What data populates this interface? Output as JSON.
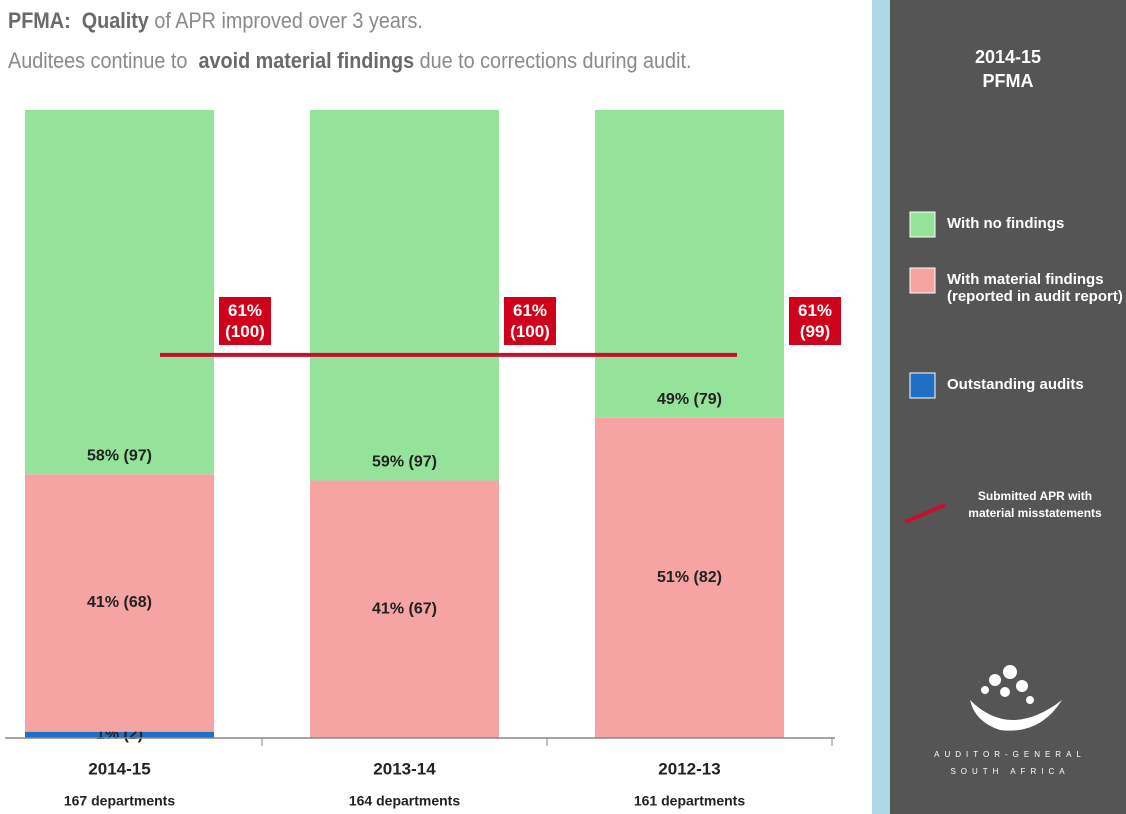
{
  "chart_data": {
    "type": "stacked_bar",
    "title_parts": [
      "PFMA:",
      "Quality",
      "of APR improved over 3 years."
    ],
    "subtitle_parts": [
      "Auditees continue to",
      "avoid material findings",
      "due to corrections during audit."
    ],
    "categories": [
      "2014-15",
      "2013-14",
      "2012-13"
    ],
    "category_notes": [
      "167 departments",
      "164 departments",
      "161 departments"
    ],
    "ylim": [
      0,
      100
    ],
    "series": [
      {
        "name": "Outstanding audits",
        "color": "#1f6fc5",
        "values": [
          1,
          0,
          0
        ],
        "value_labels": [
          "1% (2)",
          null,
          null
        ]
      },
      {
        "name": "With  material findings  (reported in audit report)",
        "color": "#f5a3a3",
        "values": [
          41,
          41,
          51
        ],
        "value_labels": [
          "41% (68)",
          "41% (67)",
          "51% (82)"
        ]
      },
      {
        "name": "With no findings",
        "color": "#95e39a",
        "values": [
          58,
          59,
          49
        ],
        "value_labels": [
          "58% (97)",
          "59% (97)",
          "49% (79)"
        ]
      }
    ],
    "line": {
      "name": "Submitted APR  with material misstatements",
      "color": "#c8102e",
      "values": [
        61,
        61,
        61
      ],
      "value_labels": [
        "61% (100)",
        "61% (100)",
        "61% (99)"
      ]
    },
    "panel_title": [
      "2014-15",
      "PFMA"
    ],
    "logo_text": [
      "AUDITOR-GENERAL",
      "SOUTH AFRICA"
    ]
  }
}
